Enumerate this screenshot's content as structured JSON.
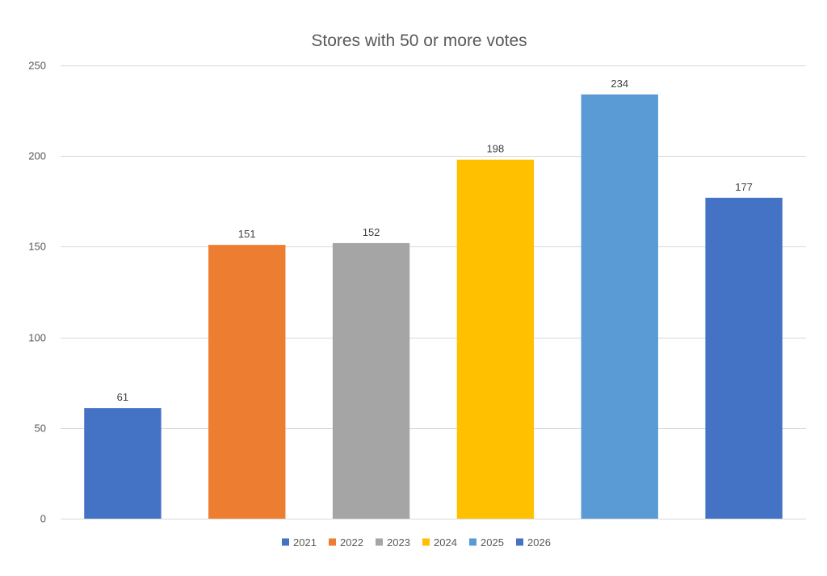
{
  "chart_data": {
    "type": "bar",
    "title": "Stores with 50 or more votes",
    "xlabel": "",
    "ylabel": "",
    "ylim": [
      0,
      250
    ],
    "yticks": [
      0,
      50,
      100,
      150,
      200,
      250
    ],
    "grid": true,
    "legend_position": "bottom",
    "categories": [
      "2021",
      "2022",
      "2023",
      "2024",
      "2025",
      "2026"
    ],
    "values": [
      61,
      151,
      152,
      198,
      234,
      177
    ],
    "colors": [
      "#4472c4",
      "#ed7d31",
      "#a5a5a5",
      "#ffc000",
      "#5b9bd5",
      "#4472c4"
    ],
    "data_labels": true
  }
}
